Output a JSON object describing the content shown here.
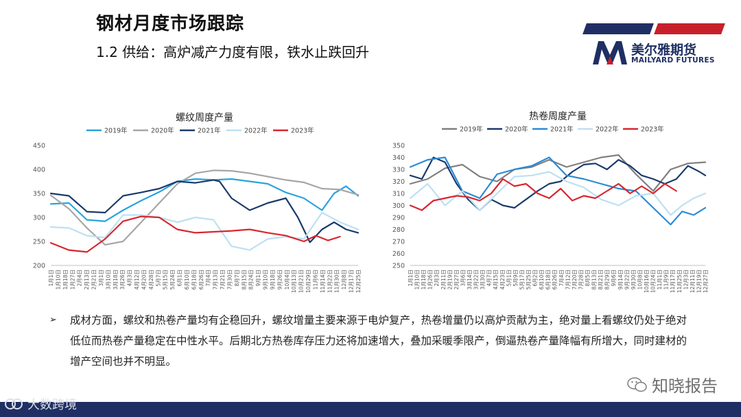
{
  "header": {
    "title": "钢材月度市场跟踪",
    "subtitle": "1.2 供给：高炉减产力度有限，铁水止跌回升"
  },
  "brand": {
    "name_cn": "美尔雅期货",
    "name_en": "MAILYARD FUTURES",
    "colors": {
      "navy": "#1f2f63",
      "red": "#c8202b"
    }
  },
  "chart_data": [
    {
      "type": "line",
      "title": "螺纹周度产量",
      "ylim": [
        200,
        450
      ],
      "yticks": [
        200,
        250,
        300,
        350,
        400,
        450
      ],
      "x_tick_labels": [
        "1月1日",
        "1月10日",
        "1月18日",
        "1月27日",
        "2月4日",
        "2月13日",
        "2月21日",
        "3月1日",
        "3月10日",
        "3月18日",
        "3月26日",
        "4月3日",
        "4月12日",
        "4月20日",
        "4月28日",
        "5月7日",
        "5月15日",
        "5月24日",
        "6月1日",
        "6月10日",
        "6月18日",
        "6月26日",
        "7月4日",
        "7月13日",
        "7月21日",
        "7月30日",
        "8月7日",
        "8月15日",
        "8月24日",
        "9月1日",
        "9月10日",
        "9月18日",
        "9月26日",
        "10月4日",
        "10月13日",
        "10月21日",
        "10月29日",
        "11月6日",
        "11月14日",
        "11月22日",
        "11月30日",
        "12月8日",
        "12月17日",
        "12月25日"
      ],
      "x_count": 52,
      "legend_position": "top",
      "series": [
        {
          "name": "2019年",
          "color": "#29a3dd",
          "x": [
            0,
            3,
            6,
            9,
            12,
            15,
            18,
            21,
            24,
            27,
            30,
            33,
            36,
            39,
            42,
            45,
            47,
            49,
            51
          ],
          "values": [
            328,
            330,
            295,
            292,
            315,
            335,
            353,
            375,
            380,
            378,
            380,
            375,
            370,
            352,
            340,
            315,
            350,
            365,
            345
          ]
        },
        {
          "name": "2020年",
          "color": "#a6a6a6",
          "x": [
            0,
            3,
            6,
            9,
            12,
            15,
            18,
            21,
            24,
            27,
            30,
            33,
            36,
            39,
            42,
            45,
            48,
            51
          ],
          "values": [
            346,
            318,
            278,
            243,
            250,
            290,
            330,
            370,
            392,
            398,
            397,
            392,
            385,
            378,
            373,
            360,
            358,
            347
          ]
        },
        {
          "name": "2021年",
          "color": "#1a3a6b",
          "x": [
            0,
            3,
            6,
            9,
            12,
            15,
            18,
            21,
            24,
            27,
            28,
            30,
            33,
            36,
            39,
            41,
            43,
            45,
            47,
            49,
            51
          ],
          "values": [
            350,
            345,
            312,
            310,
            345,
            352,
            360,
            375,
            372,
            378,
            375,
            340,
            315,
            330,
            340,
            300,
            248,
            275,
            290,
            275,
            268
          ]
        },
        {
          "name": "2022年",
          "color": "#bde0f2",
          "x": [
            0,
            3,
            6,
            9,
            12,
            15,
            18,
            21,
            24,
            27,
            30,
            33,
            36,
            39,
            42,
            45,
            48,
            51
          ],
          "values": [
            280,
            278,
            262,
            258,
            305,
            305,
            300,
            290,
            300,
            295,
            240,
            232,
            255,
            260,
            255,
            310,
            290,
            275
          ]
        },
        {
          "name": "2023年",
          "color": "#d7262e",
          "x": [
            0,
            3,
            6,
            9,
            12,
            15,
            18,
            21,
            24,
            27,
            30,
            33,
            36,
            39,
            42,
            44,
            46,
            48
          ],
          "values": [
            247,
            232,
            228,
            255,
            292,
            302,
            300,
            275,
            268,
            270,
            272,
            275,
            268,
            262,
            250,
            262,
            252,
            260
          ]
        }
      ]
    },
    {
      "type": "line",
      "title": "热卷周度产量",
      "ylim": [
        250,
        350
      ],
      "yticks": [
        250,
        260,
        270,
        280,
        290,
        300,
        310,
        320,
        330,
        340,
        350
      ],
      "x_tick_labels": [
        "1月1日",
        "1月10日",
        "1月18日",
        "1月26日",
        "2月3日",
        "2月11日",
        "2月19日",
        "2月27日",
        "3月6日",
        "3月14日",
        "3月22日",
        "3月30日",
        "4月7日",
        "4月15日",
        "4月23日",
        "5月1日",
        "5月9日",
        "5月17日",
        "5月25日",
        "6月2日",
        "6月10日",
        "6月18日",
        "6月26日",
        "7月4日",
        "7月12日",
        "7月20日",
        "7月28日",
        "8月5日",
        "8月13日",
        "8月21日",
        "8月29日",
        "9月6日",
        "9月14日",
        "9月22日",
        "9月30日",
        "10月8日",
        "10月16日",
        "10月24日",
        "11月1日",
        "11月9日",
        "11月17日",
        "11月25日",
        "12月3日",
        "12月11日",
        "12月19日",
        "12月27日"
      ],
      "x_count": 52,
      "legend_position": "top",
      "series": [
        {
          "name": "2019年",
          "color": "#7f7f7f",
          "x": [
            0,
            3,
            6,
            9,
            12,
            15,
            18,
            21,
            24,
            27,
            30,
            33,
            36,
            39,
            42,
            45,
            48,
            51
          ],
          "values": [
            318,
            322,
            331,
            334,
            324,
            320,
            330,
            332,
            338,
            332,
            336,
            340,
            342,
            326,
            312,
            330,
            335,
            336
          ]
        },
        {
          "name": "2020年",
          "color": "#1a3a6b",
          "x": [
            0,
            2,
            4,
            6,
            8,
            10,
            12,
            14,
            16,
            18,
            20,
            22,
            24,
            26,
            28,
            30,
            32,
            34,
            36,
            38,
            40,
            42,
            44,
            46,
            48,
            50,
            51
          ],
          "values": [
            325,
            322,
            340,
            336,
            318,
            305,
            296,
            305,
            300,
            298,
            305,
            312,
            318,
            320,
            328,
            334,
            335,
            330,
            338,
            333,
            325,
            322,
            318,
            322,
            333,
            328,
            325
          ]
        },
        {
          "name": "2021年",
          "color": "#2a8ad6",
          "x": [
            0,
            3,
            6,
            9,
            12,
            15,
            18,
            21,
            24,
            27,
            30,
            33,
            36,
            39,
            42,
            45,
            47,
            49,
            51
          ],
          "values": [
            332,
            338,
            340,
            312,
            306,
            326,
            330,
            333,
            340,
            325,
            322,
            318,
            314,
            312,
            298,
            284,
            295,
            292,
            298
          ]
        },
        {
          "name": "2022年",
          "color": "#bde0f2",
          "x": [
            0,
            3,
            6,
            9,
            12,
            15,
            18,
            21,
            24,
            27,
            30,
            33,
            36,
            39,
            42,
            45,
            47,
            49,
            51
          ],
          "values": [
            306,
            318,
            300,
            312,
            296,
            310,
            324,
            325,
            328,
            320,
            315,
            305,
            300,
            308,
            310,
            292,
            300,
            306,
            310
          ]
        },
        {
          "name": "2023年",
          "color": "#d7262e",
          "x": [
            0,
            2,
            4,
            6,
            8,
            10,
            12,
            14,
            16,
            18,
            20,
            22,
            24,
            26,
            28,
            30,
            32,
            34,
            36,
            38,
            40,
            42,
            44,
            46
          ],
          "values": [
            300,
            296,
            304,
            306,
            308,
            307,
            304,
            310,
            322,
            316,
            318,
            310,
            306,
            314,
            304,
            308,
            306,
            312,
            318,
            310,
            316,
            310,
            318,
            312
          ]
        }
      ]
    }
  ],
  "body": {
    "bullet_marker": "➢",
    "paragraph": "成材方面，螺纹和热卷产量均有企稳回升，螺纹增量主要来源于电炉复产，热卷增量仍以高炉贡献为主，绝对量上看螺纹仍处于绝对低位而热卷产量稳定在中性水平。后期北方热卷库存压力还将加速增大，叠加采暖季限产，倒逼热卷产量降幅有所增大，同时建材的增产空间也并不明显。"
  },
  "watermarks": {
    "right": "知晓报告",
    "left": "大数跨境"
  }
}
